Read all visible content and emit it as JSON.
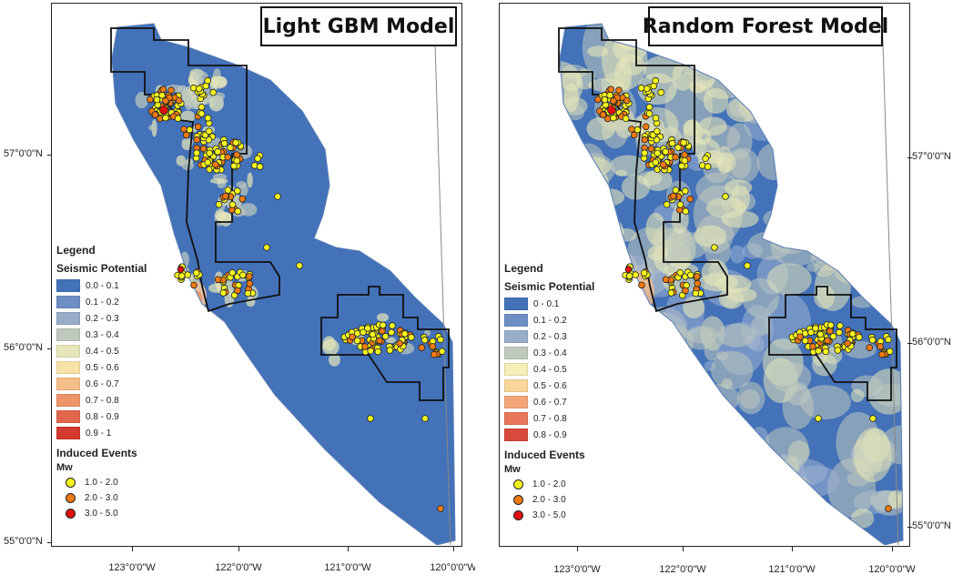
{
  "panels": [
    {
      "id": "lgbm",
      "title": "Light GBM Model",
      "legend": {
        "title": "Legend",
        "subtitle": "Seismic Potential",
        "classes": [
          {
            "label": "0.0 - 0.1",
            "color": "#4472b8"
          },
          {
            "label": "0.1 - 0.2",
            "color": "#6e8fc4"
          },
          {
            "label": "0.2 - 0.3",
            "color": "#98aec8"
          },
          {
            "label": "0.3 - 0.4",
            "color": "#bfc9bd"
          },
          {
            "label": "0.4 - 0.5",
            "color": "#e6e6b8"
          },
          {
            "label": "0.5 - 0.6",
            "color": "#f9e2a8"
          },
          {
            "label": "0.6 - 0.7",
            "color": "#f6be88"
          },
          {
            "label": "0.7 - 0.8",
            "color": "#ee9468"
          },
          {
            "label": "0.8 - 0.9",
            "color": "#e3674d"
          },
          {
            "label": "0.9 - 1",
            "color": "#d43a2f"
          }
        ],
        "events_title": "Induced Events",
        "events_subtitle": "Mw",
        "events": [
          {
            "label": "1.0 - 2.0",
            "color": "#f5f51e"
          },
          {
            "label": "2.0 - 3.0",
            "color": "#f07a12"
          },
          {
            "label": "3.0 - 5.0",
            "color": "#e01010"
          }
        ]
      },
      "lat_labels": [
        "57°0'0\"N",
        "56°0'0\"N",
        "55°0'0\"N"
      ],
      "lon_labels": [
        "123°0'0\"W",
        "122°0'0\"W",
        "121°0'0\"W",
        "120°0'0\"W"
      ]
    },
    {
      "id": "rf",
      "title": "Random Forest Model",
      "legend": {
        "title": "Legend",
        "subtitle": "Seismic Potential",
        "classes": [
          {
            "label": "0 - 0.1",
            "color": "#4472b8"
          },
          {
            "label": "0.1 - 0.2",
            "color": "#6e8fc4"
          },
          {
            "label": "0.2 - 0.3",
            "color": "#98aec8"
          },
          {
            "label": "0.3 - 0.4",
            "color": "#bfc9bd"
          },
          {
            "label": "0.4 - 0.5",
            "color": "#f3efb6"
          },
          {
            "label": "0.5 - 0.6",
            "color": "#f9d79a"
          },
          {
            "label": "0.6 - 0.7",
            "color": "#f3a67a"
          },
          {
            "label": "0.7 - 0.8",
            "color": "#e8775b"
          },
          {
            "label": "0.8 - 0.9",
            "color": "#d84a3c"
          }
        ],
        "events_title": "Induced Events",
        "events_subtitle": "Mw",
        "events": [
          {
            "label": "1.0 - 2.0",
            "color": "#f5f51e"
          },
          {
            "label": "2.0 - 3.0",
            "color": "#f07a12"
          },
          {
            "label": "3.0 - 5.0",
            "color": "#e01010"
          }
        ]
      },
      "lat_labels": [
        "57°0'0\"N",
        "56°0'0\"N",
        "55°0'0\"N"
      ],
      "lon_labels": [
        "123°0'0\"W",
        "122°0'0\"W",
        "121°0'0\"W",
        "120°0'0\"W"
      ]
    }
  ],
  "colors": {
    "low_potential": "#4472b8",
    "rf_mid_potential": "#bfc9bd",
    "rf_light": "#e6e6b8",
    "hotspot": "#f3c7a0",
    "boundary": "#111111"
  },
  "events": {
    "clusters_mw_1_2": 5,
    "note_magnitude_classes": [
      "1.0 - 2.0",
      "2.0 - 3.0",
      "3.0 - 5.0"
    ]
  }
}
